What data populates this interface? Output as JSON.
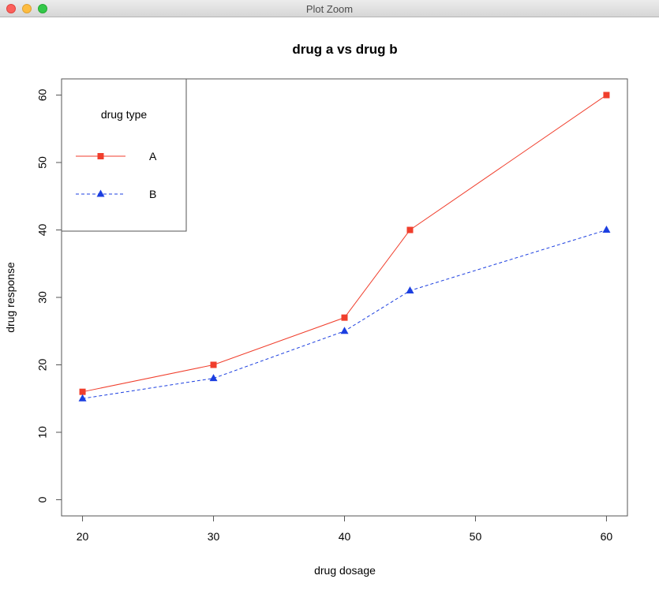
{
  "window": {
    "title": "Plot Zoom"
  },
  "chart_data": {
    "type": "line",
    "title": "drug a vs drug b",
    "xlabel": "drug dosage",
    "ylabel": "drug response",
    "x": [
      20,
      30,
      40,
      45,
      60
    ],
    "xticks": [
      20,
      30,
      40,
      50,
      60
    ],
    "yticks": [
      0,
      10,
      20,
      30,
      40,
      50,
      60
    ],
    "xlim": [
      18.4,
      61.6
    ],
    "ylim": [
      -2.4,
      62.4
    ],
    "legend": {
      "title": "drug type",
      "placement": "top-left"
    },
    "series": [
      {
        "name": "A",
        "values": [
          16,
          20,
          27,
          40,
          60
        ],
        "color": "#f03e2c",
        "marker": "square",
        "line": "solid"
      },
      {
        "name": "B",
        "values": [
          15,
          18,
          25,
          31,
          40
        ],
        "color": "#1c3fe0",
        "marker": "triangle",
        "line": "dashed"
      }
    ]
  }
}
